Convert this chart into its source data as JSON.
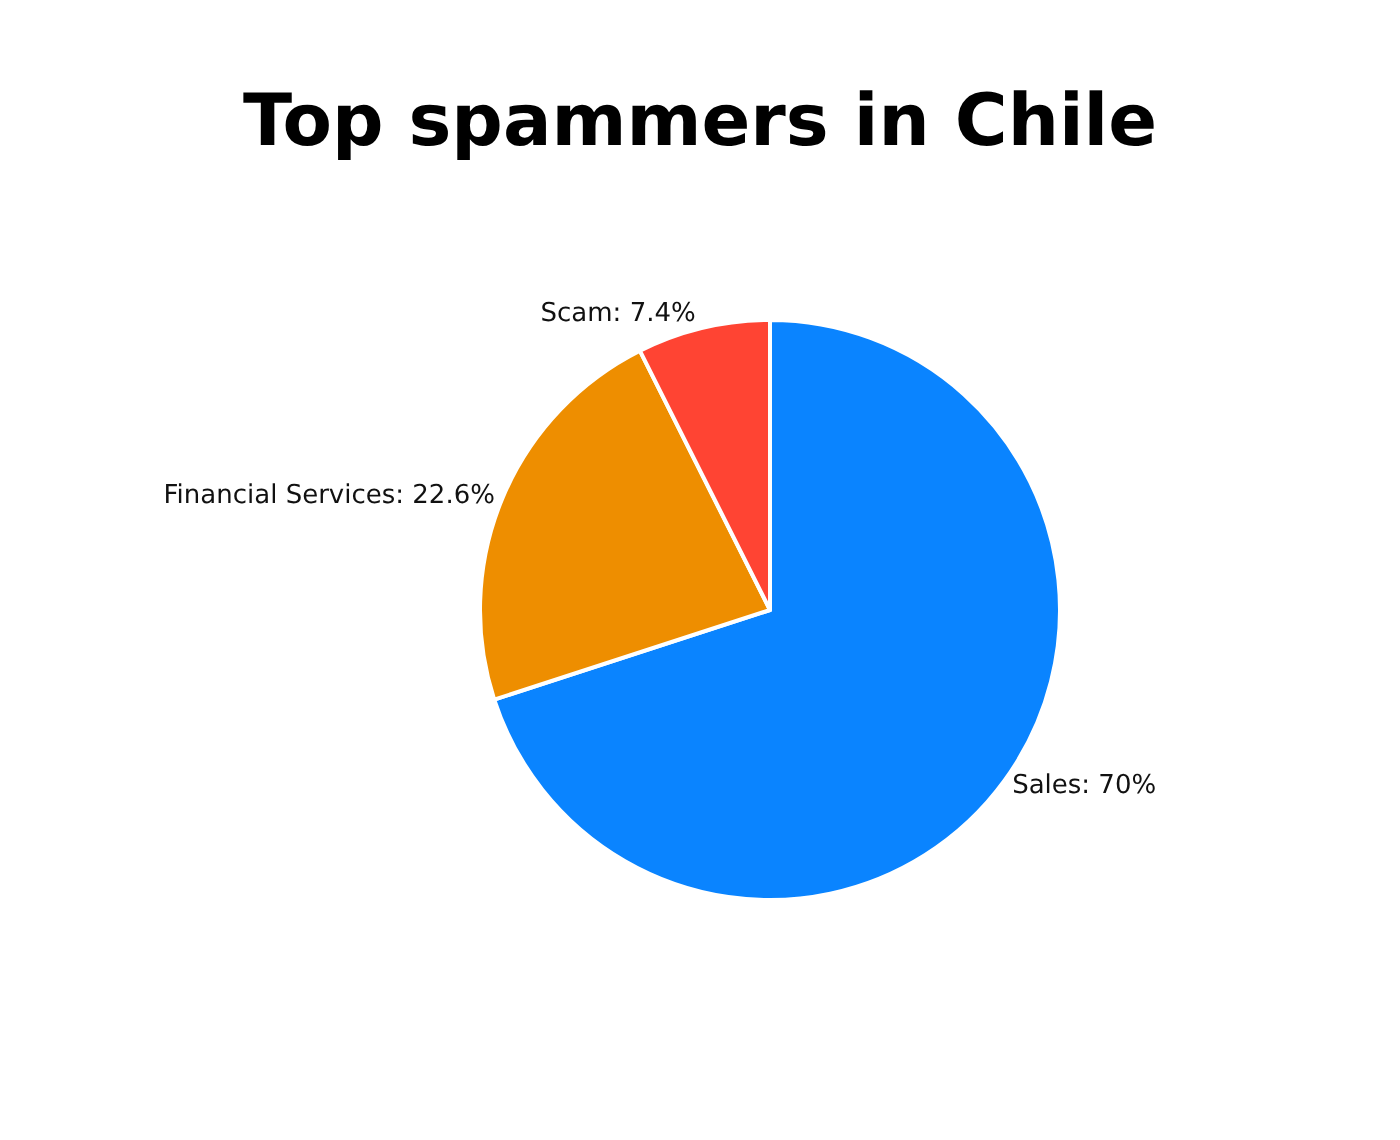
{
  "chart_data": {
    "type": "pie",
    "title": "Top spammers in Chile",
    "categories": [
      "Sales",
      "Financial Services",
      "Scam"
    ],
    "values": [
      70,
      22.6,
      7.4
    ],
    "value_labels": [
      "70%",
      "22.6%",
      "7.4%"
    ],
    "colors": [
      "#0a84ff",
      "#ee8e00",
      "#ff4433"
    ],
    "legend": false
  }
}
